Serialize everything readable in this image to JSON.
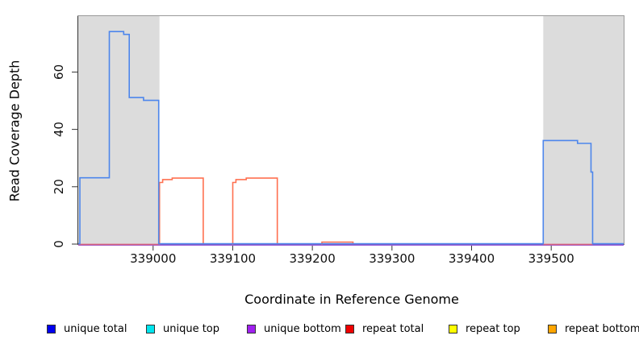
{
  "chart_data": {
    "type": "line",
    "subtype": "step-coverage-plot",
    "title": "",
    "xlabel": "Coordinate in Reference Genome",
    "ylabel": "Read Coverage Depth",
    "xlim": [
      338906,
      339591
    ],
    "ylim": [
      0,
      79.5
    ],
    "x_ticks": [
      339000,
      339100,
      339200,
      339300,
      339400,
      339500
    ],
    "y_ticks": [
      0,
      20,
      40,
      60
    ],
    "grid": false,
    "legend_position": "bottom",
    "colors": {
      "shaded_region": "#DCDCDC",
      "box_border": "#999999",
      "axis_line": "#333333",
      "tick_text": "#111111"
    },
    "shaded_regions": [
      {
        "start": 338906,
        "end": 339008
      },
      {
        "start": 339490,
        "end": 339591
      }
    ],
    "series": [
      {
        "name": "unique total",
        "legend_color": "#0000EE",
        "plot_color": "#4D86EC",
        "z": 4,
        "dy": -0.4,
        "paths": [
          [
            [
              338906,
              0
            ],
            [
              338908,
              23
            ],
            [
              338945,
              74
            ],
            [
              338963,
              73
            ],
            [
              338970,
              51
            ],
            [
              338988,
              50
            ],
            [
              339007,
              0
            ],
            [
              339490,
              36
            ],
            [
              339533,
              35
            ],
            [
              339550,
              25
            ],
            [
              339552,
              0
            ],
            [
              339591,
              0
            ]
          ]
        ]
      },
      {
        "name": "unique top",
        "legend_color": "#00E5EE",
        "plot_color": null,
        "z": 0,
        "dy": 0,
        "paths": [
          [
            [
              338906,
              0
            ],
            [
              339591,
              0
            ]
          ]
        ]
      },
      {
        "name": "unique bottom",
        "legend_color": "#A020F0",
        "plot_color": "#9A5BD8",
        "z": 1,
        "dy": 1.2,
        "paths": [
          [
            [
              338906,
              0
            ],
            [
              339591,
              0
            ]
          ]
        ]
      },
      {
        "name": "repeat total",
        "legend_color": "#EE0000",
        "plot_color": "#D5627F",
        "z": 2,
        "dy": 0.4,
        "paths": [
          [
            [
              338906,
              0
            ],
            [
              339007,
              0
            ]
          ],
          [
            [
              339490,
              0
            ],
            [
              339552,
              0
            ]
          ]
        ]
      },
      {
        "name": "repeat top",
        "legend_color": "#FFFF00",
        "plot_color": null,
        "z": 0,
        "dy": 0,
        "paths": [
          [
            [
              338906,
              0
            ],
            [
              339591,
              0
            ]
          ]
        ]
      },
      {
        "name": "repeat bottom",
        "legend_color": "#FFA500",
        "plot_color": "#FF7050",
        "z": 3,
        "dy": 0,
        "paths": [
          [
            [
              339007,
              0
            ],
            [
              339008,
              21.5
            ],
            [
              339012,
              22.5
            ],
            [
              339024,
              23
            ],
            [
              339063,
              0
            ]
          ],
          [
            [
              339099,
              0
            ],
            [
              339100,
              21.5
            ],
            [
              339104,
              22.5
            ],
            [
              339117,
              23
            ],
            [
              339156,
              0
            ]
          ],
          [
            [
              339211,
              0
            ],
            [
              339212,
              0.7
            ],
            [
              339251,
              0
            ]
          ]
        ]
      }
    ]
  },
  "legend_lefts": [
    58,
    181,
    306,
    428,
    556,
    679
  ]
}
